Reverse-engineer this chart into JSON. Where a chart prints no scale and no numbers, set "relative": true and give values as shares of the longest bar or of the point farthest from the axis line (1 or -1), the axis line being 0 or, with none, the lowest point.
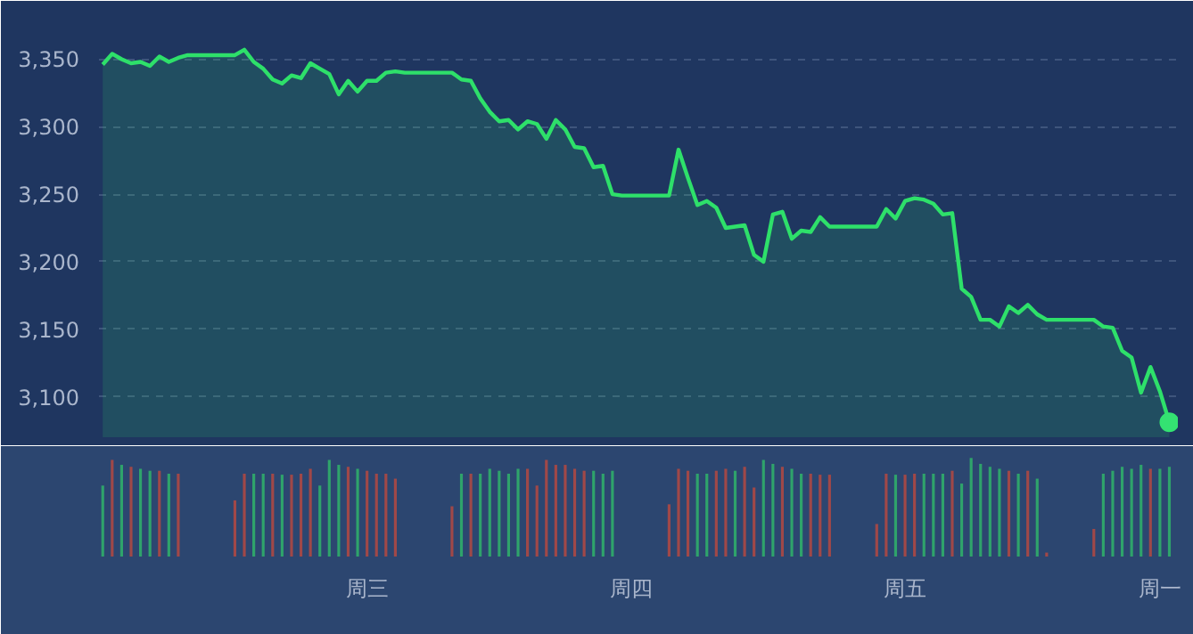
{
  "chart_data": [
    {
      "type": "area",
      "categories": [
        null,
        null,
        null,
        null,
        null,
        null,
        null,
        null,
        null,
        null,
        null,
        null,
        null,
        null,
        null,
        null,
        null,
        null,
        null,
        null,
        null,
        null,
        null,
        null,
        null,
        null,
        null,
        null,
        null,
        null,
        null,
        null,
        null,
        null,
        null,
        null,
        null,
        null,
        null,
        null,
        null,
        null,
        null,
        null,
        null,
        null,
        null,
        null,
        null,
        null,
        null,
        null,
        null,
        null,
        null,
        null,
        null,
        null,
        null,
        null,
        null,
        null,
        null,
        null,
        null,
        null,
        null,
        null,
        null,
        null,
        null,
        null,
        null,
        null,
        null,
        null,
        null,
        null,
        null,
        null,
        null,
        null,
        null,
        null,
        null,
        null,
        null,
        null,
        null,
        null,
        null,
        null,
        null,
        null,
        null,
        null,
        null,
        null,
        null,
        null,
        null,
        null,
        null,
        null,
        null,
        null,
        null,
        null,
        null,
        null,
        null,
        null,
        null,
        null
      ],
      "ylim": [
        3070,
        3380
      ],
      "yticks": [
        {
          "value": 3100,
          "label": "3,100"
        },
        {
          "value": 3150,
          "label": "3,150"
        },
        {
          "value": 3200,
          "label": "3,200"
        },
        {
          "value": 3250,
          "label": "3,250"
        },
        {
          "value": 3300,
          "label": "3,300"
        },
        {
          "value": 3350,
          "label": "3,350"
        }
      ],
      "grid": "y",
      "tick_labels": "y",
      "series": [
        {
          "color": "#2ee06a",
          "values": [
            3346,
            3354,
            3350,
            3347,
            3348,
            3345,
            3352,
            3348,
            3351,
            3353,
            3353,
            3353,
            3353,
            3353,
            3353,
            3357,
            3348,
            3343,
            3335,
            3332,
            3338,
            3336,
            3347,
            3343,
            3339,
            3324,
            3334,
            3326,
            3334,
            3334,
            3340,
            3341,
            3340,
            3340,
            3340,
            3340,
            3340,
            3340,
            3335,
            3334,
            3321,
            3311,
            3304,
            3305,
            3298,
            3304,
            3302,
            3291,
            3305,
            3298,
            3285,
            3284,
            3270,
            3271,
            3250,
            3249,
            3249,
            3249,
            3249,
            3249,
            3249,
            3283,
            3262,
            3242,
            3245,
            3240,
            3225,
            3226,
            3227,
            3205,
            3200,
            3235,
            3237,
            3217,
            3223,
            3222,
            3233,
            3226,
            3226,
            3226,
            3226,
            3226,
            3226,
            3239,
            3232,
            3245,
            3247,
            3246,
            3243,
            3235,
            3236,
            3180,
            3174,
            3157,
            3157,
            3152,
            3167,
            3162,
            3168,
            3161,
            3157,
            3157,
            3157,
            3157,
            3157,
            3157,
            3152,
            3151,
            3134,
            3129,
            3103,
            3122,
            3104,
            3081
          ]
        },
        {
          "type": "scatter",
          "color": "#34e272",
          "marker": "circle",
          "values": [
            null,
            null,
            null,
            null,
            null,
            null,
            null,
            null,
            null,
            null,
            null,
            null,
            null,
            null,
            null,
            null,
            null,
            null,
            null,
            null,
            null,
            null,
            null,
            null,
            null,
            null,
            null,
            null,
            null,
            null,
            null,
            null,
            null,
            null,
            null,
            null,
            null,
            null,
            null,
            null,
            null,
            null,
            null,
            null,
            null,
            null,
            null,
            null,
            null,
            null,
            null,
            null,
            null,
            null,
            null,
            null,
            null,
            null,
            null,
            null,
            null,
            null,
            null,
            null,
            null,
            null,
            null,
            null,
            null,
            null,
            null,
            null,
            null,
            null,
            null,
            null,
            null,
            null,
            null,
            null,
            null,
            null,
            null,
            null,
            null,
            null,
            null,
            null,
            null,
            null,
            null,
            null,
            null,
            null,
            null,
            null,
            null,
            null,
            null,
            null,
            null,
            null,
            null,
            null,
            null,
            null,
            null,
            null,
            null,
            null,
            null,
            null,
            null,
            3081
          ]
        }
      ]
    },
    {
      "type": "bar",
      "relative": true,
      "tick_labels": "x",
      "categories": [
        null,
        null,
        null,
        null,
        null,
        null,
        null,
        null,
        null,
        null,
        null,
        null,
        null,
        null,
        null,
        null,
        null,
        null,
        null,
        null,
        null,
        null,
        null,
        null,
        null,
        null,
        null,
        null,
        "周三",
        null,
        null,
        null,
        null,
        null,
        null,
        null,
        null,
        null,
        null,
        null,
        null,
        null,
        null,
        null,
        null,
        null,
        null,
        null,
        null,
        null,
        null,
        null,
        null,
        null,
        null,
        null,
        "周四",
        null,
        null,
        null,
        null,
        null,
        null,
        null,
        null,
        null,
        null,
        null,
        null,
        null,
        null,
        null,
        null,
        null,
        null,
        null,
        null,
        null,
        null,
        null,
        null,
        null,
        null,
        null,
        null,
        "周五",
        null,
        null,
        null,
        null,
        null,
        null,
        null,
        null,
        null,
        null,
        null,
        null,
        null,
        null,
        null,
        null,
        null,
        null,
        null,
        null,
        null,
        null,
        null,
        null,
        null,
        null,
        "周一",
        null
      ],
      "values": [
        0.72,
        0.98,
        0.93,
        0.91,
        0.89,
        0.87,
        0.87,
        0.84,
        0.84,
        null,
        null,
        null,
        null,
        null,
        0.57,
        0.84,
        0.84,
        0.84,
        0.84,
        0.83,
        0.83,
        0.84,
        0.89,
        0.72,
        0.98,
        0.93,
        0.91,
        0.89,
        0.87,
        0.84,
        0.84,
        0.79,
        null,
        null,
        null,
        null,
        null,
        0.51,
        0.84,
        0.84,
        0.84,
        0.89,
        0.87,
        0.84,
        0.89,
        0.89,
        0.72,
        0.98,
        0.93,
        0.93,
        0.89,
        0.87,
        0.87,
        0.84,
        0.87,
        null,
        null,
        null,
        null,
        null,
        0.53,
        0.89,
        0.87,
        0.84,
        0.84,
        0.87,
        0.89,
        0.87,
        0.91,
        0.7,
        0.98,
        0.94,
        0.91,
        0.89,
        0.84,
        0.84,
        0.83,
        0.83,
        null,
        null,
        null,
        null,
        0.33,
        0.84,
        0.83,
        0.83,
        0.84,
        0.84,
        0.84,
        0.84,
        0.87,
        0.74,
        1,
        0.94,
        0.91,
        0.89,
        0.87,
        0.84,
        0.87,
        0.79,
        0.04,
        null,
        null,
        null,
        null,
        0.28,
        0.84,
        0.87,
        0.91,
        0.89,
        0.93,
        0.89,
        0.89,
        0.91
      ],
      "colors": [
        "#2fa36b",
        "#a04848",
        "#2fa36b",
        "#a04848",
        "#2fa36b",
        "#2fa36b",
        "#a04848",
        "#2fa36b",
        "#a04848",
        null,
        null,
        null,
        null,
        null,
        "#a04848",
        "#a04848",
        "#2fa36b",
        "#2fa36b",
        "#a04848",
        "#2fa36b",
        "#a04848",
        "#a04848",
        "#a04848",
        "#2fa36b",
        "#2fa36b",
        "#2fa36b",
        "#a04848",
        "#2fa36b",
        "#a04848",
        "#a04848",
        "#a04848",
        "#a04848",
        null,
        null,
        null,
        null,
        null,
        "#a04848",
        "#2fa36b",
        "#a04848",
        "#2fa36b",
        "#2fa36b",
        "#2fa36b",
        "#2fa36b",
        "#2fa36b",
        "#a04848",
        "#a04848",
        "#a04848",
        "#a04848",
        "#a04848",
        "#a04848",
        "#a04848",
        "#2fa36b",
        "#2fa36b",
        "#2fa36b",
        null,
        null,
        null,
        null,
        null,
        "#a04848",
        "#a04848",
        "#a04848",
        "#2fa36b",
        "#2fa36b",
        "#a04848",
        "#a04848",
        "#2fa36b",
        "#a04848",
        "#a04848",
        "#2fa36b",
        "#2fa36b",
        "#a04848",
        "#2fa36b",
        "#2fa36b",
        "#a04848",
        "#a04848",
        "#a04848",
        null,
        null,
        null,
        null,
        "#a04848",
        "#a04848",
        "#2fa36b",
        "#a04848",
        "#a04848",
        "#2fa36b",
        "#2fa36b",
        "#2fa36b",
        "#a04848",
        "#2fa36b",
        "#2fa36b",
        "#2fa36b",
        "#2fa36b",
        "#2fa36b",
        "#a04848",
        "#2fa36b",
        "#a04848",
        "#2fa36b",
        "#a04848",
        null,
        null,
        null,
        null,
        "#a04848",
        "#2fa36b",
        "#2fa36b",
        "#2fa36b",
        "#2fa36b",
        "#2fa36b",
        "#a04848",
        "#2fa36b",
        "#2fa36b"
      ]
    }
  ]
}
